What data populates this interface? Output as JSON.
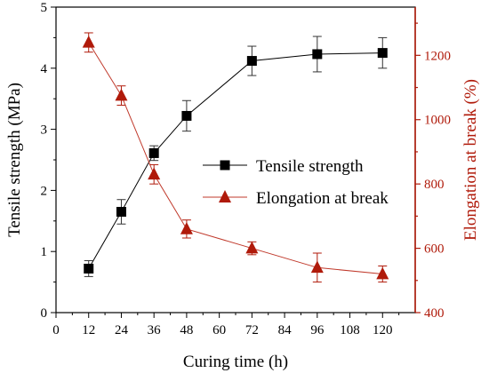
{
  "chart_data": {
    "type": "line",
    "xlabel": "Curing time (h)",
    "ylabel_left": "Tensile strength (MPa)",
    "ylabel_right": "Elongation at break (%)",
    "x_ticks": [
      0,
      12,
      24,
      36,
      48,
      60,
      72,
      84,
      96,
      108,
      120
    ],
    "x_tick_labels": [
      "0",
      "12",
      "24",
      "36",
      "48",
      "60",
      "72",
      "84",
      "96",
      "108",
      "120"
    ],
    "xlim": [
      0,
      132
    ],
    "ylim_left": [
      0,
      5
    ],
    "y_left_ticks": [
      0,
      1,
      2,
      3,
      4,
      5
    ],
    "y_left_tick_labels": [
      "0",
      "1",
      "2",
      "3",
      "4",
      "5"
    ],
    "ylim_right": [
      400,
      1350
    ],
    "y_right_ticks": [
      400,
      600,
      800,
      1000,
      1200
    ],
    "y_right_tick_labels": [
      "400",
      "600",
      "800",
      "1000",
      "1200"
    ],
    "legend_position": "center-right",
    "grid": false,
    "series": [
      {
        "name": "Tensile strength",
        "axis": "left",
        "marker": "square",
        "color": "#000000",
        "x": [
          12,
          24,
          36,
          48,
          72,
          96,
          120
        ],
        "y": [
          0.72,
          1.65,
          2.61,
          3.22,
          4.12,
          4.23,
          4.25
        ],
        "err": [
          0.13,
          0.2,
          0.12,
          0.25,
          0.24,
          0.29,
          0.25
        ]
      },
      {
        "name": "Elongation at break",
        "axis": "right",
        "marker": "triangle",
        "color": "#c0392b",
        "marker_color": "#b01a0a",
        "x": [
          12,
          24,
          36,
          48,
          72,
          96,
          120
        ],
        "y": [
          1240,
          1075,
          830,
          660,
          600,
          540,
          520
        ],
        "err": [
          30,
          30,
          30,
          28,
          20,
          45,
          25
        ]
      }
    ]
  }
}
